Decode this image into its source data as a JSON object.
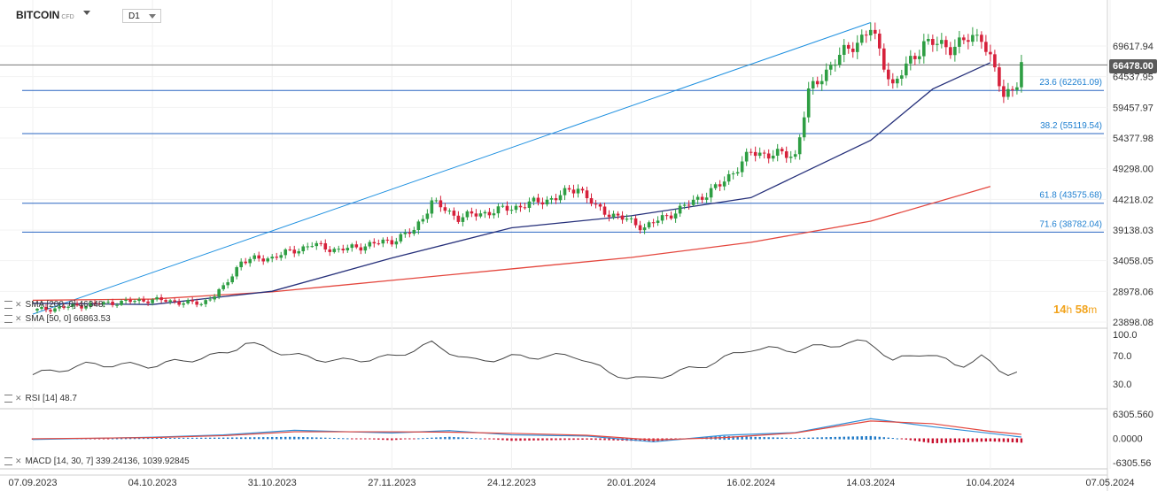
{
  "header": {
    "symbol": "BITCOIN",
    "symbol_badge": "CFD",
    "timeframe": "D1"
  },
  "countdown": {
    "hours": "14",
    "hours_unit": "h",
    "minutes": "58",
    "minutes_unit": "m"
  },
  "colors": {
    "candle_up": "#2e9e43",
    "candle_down": "#d6213b",
    "sma200": "#e4473e",
    "sma50": "#26307a",
    "fib": "#2a66c2",
    "trend": "#1e90e0",
    "rsi": "#444444",
    "macd_line": "#2f8fd8",
    "macd_signal": "#e4473e",
    "hist_pos": "#1d78c6",
    "hist_neg": "#c8102e",
    "price_tag": "#5a5a5a"
  },
  "indicators": {
    "sma200_label": "SMA [200, 0] 46348.",
    "sma50_label": "SMA [50, 0] 66863.53",
    "rsi_label": "RSI [14] 48.7",
    "macd_label": "MACD [14, 30, 7] 339.24136, 1039.92845"
  },
  "chart_data": {
    "type": "candlestick",
    "instrument": "BITCOIN",
    "timeframe": "D1",
    "current_price": "66478.00",
    "x_ticks": [
      "07.09.2023",
      "04.10.2023",
      "31.10.2023",
      "27.11.2023",
      "24.12.2023",
      "20.01.2024",
      "16.02.2024",
      "14.03.2024",
      "10.04.2024",
      "07.05.2024"
    ],
    "x_range": [
      "2023-09-07",
      "2024-05-07"
    ],
    "price_axis": {
      "ticks": [
        "69617.94",
        "64537.95",
        "59457.97",
        "54377.98",
        "49298.00",
        "44218.02",
        "39138.03",
        "34058.05",
        "28978.06",
        "23898.08"
      ],
      "ylim": [
        23898.08,
        69617.94
      ]
    },
    "fibonacci": [
      {
        "label": "23.6 (62261.09)",
        "level": 62261.09
      },
      {
        "label": "38.2 (55119.54)",
        "level": 55119.54
      },
      {
        "label": "61.8 (43575.68)",
        "level": 43575.68
      },
      {
        "label": "71.6 (38782.04)",
        "level": 38782.04
      }
    ],
    "trendline": {
      "from": [
        "2023-09-07",
        25200
      ],
      "to": [
        "2024-03-14",
        73500
      ]
    },
    "sma200": [
      [
        "2023-09-07",
        27500
      ],
      [
        "2023-10-04",
        27700
      ],
      [
        "2023-10-31",
        28900
      ],
      [
        "2023-11-27",
        30800
      ],
      [
        "2023-12-24",
        32700
      ],
      [
        "2024-01-20",
        34600
      ],
      [
        "2024-02-16",
        37100
      ],
      [
        "2024-03-14",
        40600
      ],
      [
        "2024-04-10",
        46348
      ]
    ],
    "sma50": [
      [
        "2023-09-07",
        27000
      ],
      [
        "2023-10-04",
        26800
      ],
      [
        "2023-10-31",
        29000
      ],
      [
        "2023-11-27",
        34500
      ],
      [
        "2023-12-24",
        39500
      ],
      [
        "2024-01-20",
        41500
      ],
      [
        "2024-02-16",
        44500
      ],
      [
        "2024-03-14",
        54000
      ],
      [
        "2024-03-28",
        62500
      ],
      [
        "2024-04-10",
        66863.53
      ]
    ],
    "price_path": [
      [
        "2023-09-07",
        25800
      ],
      [
        "2023-09-20",
        26800
      ],
      [
        "2023-10-04",
        27600
      ],
      [
        "2023-10-15",
        26900
      ],
      [
        "2023-10-20",
        29500
      ],
      [
        "2023-10-24",
        34000
      ],
      [
        "2023-10-31",
        34600
      ],
      [
        "2023-11-09",
        36700
      ],
      [
        "2023-11-15",
        35800
      ],
      [
        "2023-11-27",
        37400
      ],
      [
        "2023-12-02",
        39000
      ],
      [
        "2023-12-06",
        43800
      ],
      [
        "2023-12-12",
        41200
      ],
      [
        "2023-12-24",
        42800
      ],
      [
        "2024-01-03",
        44500
      ],
      [
        "2024-01-08",
        46300
      ],
      [
        "2024-01-12",
        42800
      ],
      [
        "2024-01-23",
        39600
      ],
      [
        "2024-01-31",
        42600
      ],
      [
        "2024-02-09",
        46500
      ],
      [
        "2024-02-16",
        51900
      ],
      [
        "2024-02-26",
        51500
      ],
      [
        "2024-02-29",
        61800
      ],
      [
        "2024-03-05",
        66500
      ],
      [
        "2024-03-14",
        72400
      ],
      [
        "2024-03-19",
        63000
      ],
      [
        "2024-03-26",
        70200
      ],
      [
        "2024-04-01",
        69500
      ],
      [
        "2024-04-05",
        70600
      ],
      [
        "2024-04-08",
        71500
      ],
      [
        "2024-04-13",
        61200
      ],
      [
        "2024-04-16",
        63800
      ],
      [
        "2024-04-17",
        66478
      ]
    ],
    "rsi": {
      "label": "RSI [14] 48.7",
      "period": 14,
      "value": 48.7,
      "ticks": [
        "100.0",
        "70.0",
        "30.0"
      ],
      "ylim": [
        0,
        100
      ],
      "series": [
        [
          "2023-09-07",
          43
        ],
        [
          "2023-09-20",
          58
        ],
        [
          "2023-10-04",
          56
        ],
        [
          "2023-10-20",
          72
        ],
        [
          "2023-10-25",
          88
        ],
        [
          "2023-11-05",
          70
        ],
        [
          "2023-11-15",
          62
        ],
        [
          "2023-11-27",
          68
        ],
        [
          "2023-12-06",
          87
        ],
        [
          "2023-12-15",
          62
        ],
        [
          "2023-12-24",
          68
        ],
        [
          "2024-01-08",
          70
        ],
        [
          "2024-01-15",
          45
        ],
        [
          "2024-01-23",
          36
        ],
        [
          "2024-02-05",
          55
        ],
        [
          "2024-02-16",
          80
        ],
        [
          "2024-02-26",
          78
        ],
        [
          "2024-03-05",
          85
        ],
        [
          "2024-03-14",
          90
        ],
        [
          "2024-03-19",
          62
        ],
        [
          "2024-03-26",
          75
        ],
        [
          "2024-04-03",
          55
        ],
        [
          "2024-04-08",
          68
        ],
        [
          "2024-04-13",
          45
        ],
        [
          "2024-04-17",
          48.7
        ]
      ]
    },
    "macd": {
      "label": "MACD [14, 30, 7] 339.24136, 1039.92845",
      "params": [
        14,
        30,
        7
      ],
      "macd": 339.24136,
      "signal": 1039.92845,
      "ticks": [
        "6305.560",
        "0.0000",
        "-6305.56"
      ],
      "ylim": [
        -6305.56,
        6305.56
      ],
      "macd_series": [
        [
          "2023-09-07",
          -300
        ],
        [
          "2023-10-04",
          300
        ],
        [
          "2023-10-20",
          900
        ],
        [
          "2023-11-05",
          2100
        ],
        [
          "2023-11-27",
          1400
        ],
        [
          "2023-12-10",
          2000
        ],
        [
          "2023-12-24",
          900
        ],
        [
          "2024-01-10",
          600
        ],
        [
          "2024-01-25",
          -900
        ],
        [
          "2024-02-10",
          800
        ],
        [
          "2024-02-26",
          1500
        ],
        [
          "2024-03-14",
          5100
        ],
        [
          "2024-03-28",
          3000
        ],
        [
          "2024-04-10",
          1300
        ],
        [
          "2024-04-17",
          339.24
        ]
      ],
      "signal_series": [
        [
          "2023-09-07",
          -100
        ],
        [
          "2023-10-04",
          200
        ],
        [
          "2023-10-20",
          700
        ],
        [
          "2023-11-05",
          1700
        ],
        [
          "2023-11-27",
          1700
        ],
        [
          "2023-12-10",
          1600
        ],
        [
          "2023-12-24",
          1300
        ],
        [
          "2024-01-10",
          800
        ],
        [
          "2024-01-25",
          -400
        ],
        [
          "2024-02-10",
          200
        ],
        [
          "2024-02-26",
          1400
        ],
        [
          "2024-03-14",
          4500
        ],
        [
          "2024-03-28",
          3800
        ],
        [
          "2024-04-10",
          1800
        ],
        [
          "2024-04-17",
          1039.93
        ]
      ]
    }
  }
}
